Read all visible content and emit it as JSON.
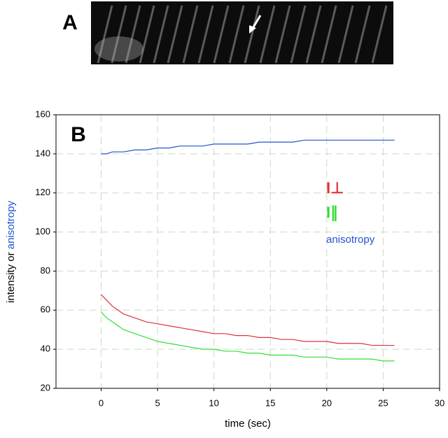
{
  "panel_labels": {
    "a": "A",
    "b": "B"
  },
  "chart_data": {
    "type": "line",
    "ylabel_parts": [
      "intensity or ",
      "anisotropy"
    ],
    "xlabel": "time (sec)",
    "x": [
      0,
      0.5,
      1,
      1.5,
      2,
      3,
      4,
      5,
      6,
      7,
      8,
      9,
      10,
      11,
      12,
      13,
      14,
      15,
      16,
      17,
      18,
      19,
      20,
      21,
      22,
      23,
      24,
      25,
      26
    ],
    "series": [
      {
        "name": "I⊥",
        "color": "#e0303a",
        "values": [
          68,
          65,
          62,
          60,
          58,
          56,
          54,
          53,
          52,
          51,
          50,
          49,
          48,
          48,
          47,
          47,
          46,
          46,
          45,
          45,
          44,
          44,
          44,
          43,
          43,
          43,
          42,
          42,
          42
        ]
      },
      {
        "name": "I∥",
        "color": "#33dd33",
        "values": [
          59,
          56,
          54,
          52,
          50,
          48,
          46,
          44,
          43,
          42,
          41,
          40,
          40,
          39,
          39,
          38,
          38,
          37,
          37,
          37,
          36,
          36,
          36,
          35,
          35,
          35,
          35,
          34,
          34
        ]
      },
      {
        "name": "anisotropy",
        "color": "#2255cc",
        "values": [
          140,
          140,
          141,
          141,
          141,
          142,
          142,
          143,
          143,
          144,
          144,
          144,
          145,
          145,
          145,
          145,
          146,
          146,
          146,
          146,
          147,
          147,
          147,
          147,
          147,
          147,
          147,
          147,
          147
        ]
      }
    ],
    "xlim": [
      -4,
      30
    ],
    "xticks": [
      0,
      5,
      10,
      15,
      20,
      25,
      30
    ],
    "ylim": [
      20,
      160
    ],
    "yticks": [
      20,
      40,
      60,
      80,
      100,
      120,
      140,
      160
    ],
    "grid": true
  }
}
